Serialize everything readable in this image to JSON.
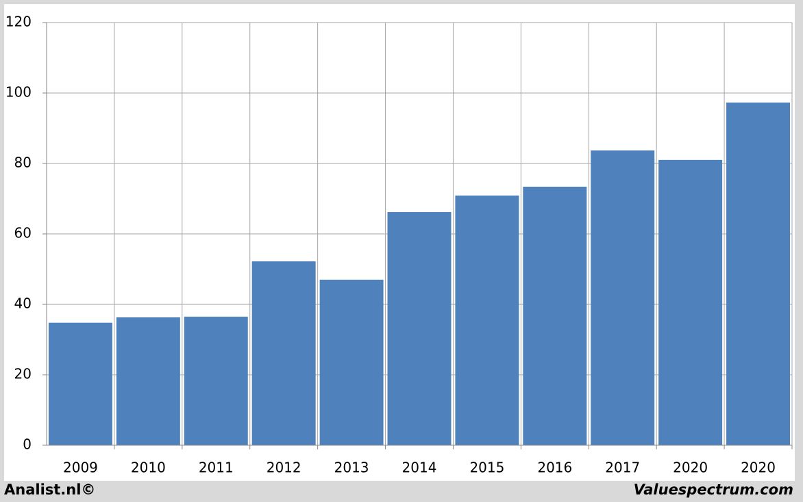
{
  "chart_data": {
    "type": "bar",
    "categories": [
      "2009",
      "2010",
      "2011",
      "2012",
      "2013",
      "2014",
      "2015",
      "2016",
      "2017",
      "2020",
      "2020"
    ],
    "values": [
      34.8,
      36.3,
      36.5,
      52.2,
      47.0,
      66.2,
      70.9,
      73.4,
      83.7,
      81.0,
      97.3
    ],
    "color": "#4f81bd",
    "ylim": [
      0,
      120
    ],
    "yticks": [
      0,
      20,
      40,
      60,
      80,
      100,
      120
    ],
    "grid": true,
    "footer_left": "Analist.nl©",
    "footer_right": "Valuespectrum.com"
  }
}
